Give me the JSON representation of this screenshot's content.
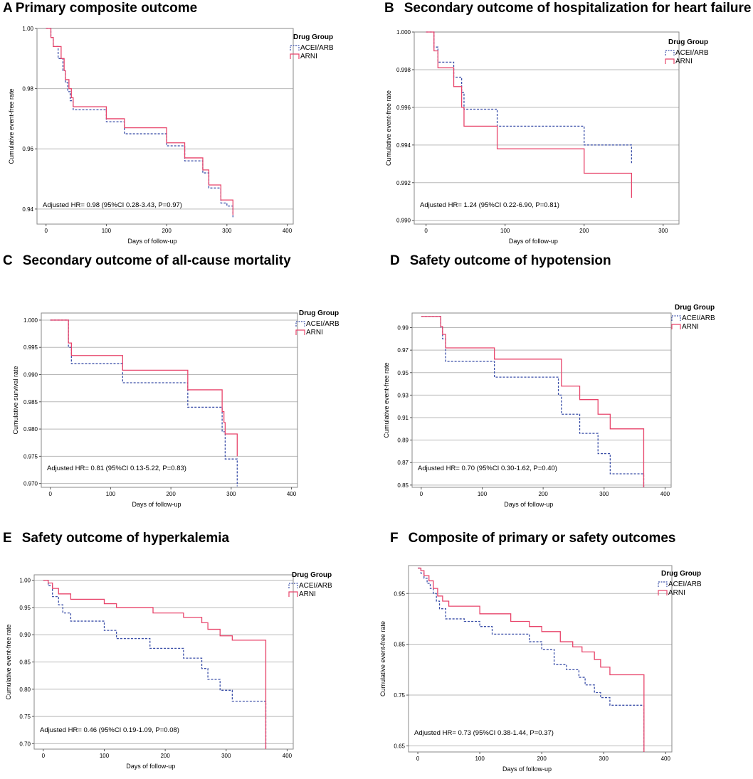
{
  "legend": {
    "title": "Drug Group",
    "entries": [
      "ACEI/ARB",
      "ARNI"
    ],
    "colors": {
      "ACEI/ARB": "#3b4fa8",
      "ARNI": "#e8456b"
    }
  },
  "chart_data": [
    {
      "type": "line",
      "letter": "A",
      "title": "Primary composite outcome",
      "xlabel": "Days of follow-up",
      "ylabel": "Cumulative event-free rate",
      "xlim": [
        -15,
        410
      ],
      "ylim": [
        0.935,
        1.0
      ],
      "xticks": [
        "0",
        "100",
        "200",
        "300",
        "400"
      ],
      "xtickvals": [
        0,
        100,
        200,
        300,
        400
      ],
      "yticks": [
        "0.94",
        "0.96",
        "0.98",
        "1.00"
      ],
      "ytickvals": [
        0.94,
        0.96,
        0.98,
        1.0
      ],
      "annotation": "Adjusted HR= 0.98 (95%CI 0.28-3.43, P=0.97)",
      "series": [
        {
          "name": "ACEI/ARB",
          "x": [
            0,
            8,
            12,
            20,
            28,
            32,
            36,
            40,
            45,
            100,
            130,
            200,
            230,
            250,
            260,
            270,
            290,
            300,
            310
          ],
          "values": [
            1.0,
            0.997,
            0.994,
            0.99,
            0.986,
            0.982,
            0.979,
            0.976,
            0.973,
            0.969,
            0.965,
            0.961,
            0.956,
            0.956,
            0.952,
            0.947,
            0.942,
            0.941,
            0.937
          ]
        },
        {
          "name": "ARNI",
          "x": [
            0,
            8,
            12,
            25,
            30,
            32,
            38,
            42,
            45,
            100,
            130,
            200,
            230,
            250,
            260,
            270,
            290,
            300,
            310
          ],
          "values": [
            1.0,
            0.997,
            0.994,
            0.99,
            0.986,
            0.983,
            0.98,
            0.977,
            0.974,
            0.97,
            0.967,
            0.962,
            0.957,
            0.957,
            0.953,
            0.948,
            0.943,
            0.943,
            0.938
          ]
        }
      ]
    },
    {
      "type": "line",
      "letter": "B",
      "title": "Secondary outcome of hospitalization for heart failure",
      "xlabel": "Days of follow-up",
      "ylabel": "Cumulative event-free rate",
      "xlim": [
        -15,
        320
      ],
      "ylim": [
        0.9898,
        1.0
      ],
      "xticks": [
        "0",
        "100",
        "200",
        "300"
      ],
      "xtickvals": [
        0,
        100,
        200,
        300
      ],
      "yticks": [
        "0.990",
        "0.992",
        "0.994",
        "0.996",
        "0.998",
        "1.000"
      ],
      "ytickvals": [
        0.99,
        0.992,
        0.994,
        0.996,
        0.998,
        1.0
      ],
      "annotation": "Adjusted HR= 1.24 (95%CI 0.22-6.90, P=0.81)",
      "series": [
        {
          "name": "ACEI/ARB",
          "x": [
            0,
            10,
            15,
            35,
            45,
            48,
            90,
            200,
            260
          ],
          "values": [
            1.0,
            0.9992,
            0.9984,
            0.9976,
            0.9968,
            0.9959,
            0.995,
            0.994,
            0.993
          ]
        },
        {
          "name": "ARNI",
          "x": [
            0,
            10,
            15,
            35,
            45,
            48,
            90,
            200,
            260
          ],
          "values": [
            1.0,
            0.999,
            0.9981,
            0.9971,
            0.996,
            0.995,
            0.9938,
            0.9925,
            0.9912
          ]
        }
      ]
    },
    {
      "type": "line",
      "letter": "C",
      "title": "Secondary outcome of all-cause mortality",
      "xlabel": "Days of follow-up",
      "ylabel": "Cumulative survival rate",
      "xlim": [
        -15,
        410
      ],
      "ylim": [
        0.9693,
        1.0013
      ],
      "xticks": [
        "0",
        "100",
        "200",
        "300",
        "400"
      ],
      "xtickvals": [
        0,
        100,
        200,
        300,
        400
      ],
      "yticks": [
        "0.970",
        "0.975",
        "0.980",
        "0.985",
        "0.990",
        "0.995",
        "1.000"
      ],
      "ytickvals": [
        0.97,
        0.975,
        0.98,
        0.985,
        0.99,
        0.995,
        1.0
      ],
      "annotation": "Adjusted HR=  0.81  (95%CI 0.13-5.22, P=0.83)",
      "series": [
        {
          "name": "ACEI/ARB",
          "x": [
            0,
            30,
            35,
            120,
            228,
            285,
            290,
            310
          ],
          "values": [
            1.0,
            0.995,
            0.992,
            0.9885,
            0.984,
            0.9795,
            0.9745,
            0.9695
          ]
        },
        {
          "name": "ARNI",
          "x": [
            0,
            30,
            35,
            120,
            228,
            285,
            288,
            290,
            300,
            310
          ],
          "values": [
            1.0,
            0.9958,
            0.9935,
            0.9908,
            0.9872,
            0.9832,
            0.9812,
            0.9791,
            0.9791,
            0.975
          ]
        }
      ]
    },
    {
      "type": "line",
      "letter": "D",
      "title": "Safety outcome of hypotension",
      "xlabel": "Days of follow-up",
      "ylabel": "Cumulative event-free rate",
      "xlim": [
        -15,
        410
      ],
      "ylim": [
        0.848,
        1.003
      ],
      "xticks": [
        "0",
        "100",
        "200",
        "300",
        "400"
      ],
      "xtickvals": [
        0,
        100,
        200,
        300,
        400
      ],
      "yticks": [
        "0.85",
        "0.87",
        "0.89",
        "0.91",
        "0.93",
        "0.95",
        "0.97",
        "0.99"
      ],
      "ytickvals": [
        0.85,
        0.87,
        0.89,
        0.91,
        0.93,
        0.95,
        0.97,
        0.99
      ],
      "annotation": "Adjusted HR= 0.70 (95%CI 0.30-1.62, P=0.40)",
      "series": [
        {
          "name": "ACEI/ARB",
          "x": [
            0,
            32,
            35,
            40,
            120,
            225,
            230,
            260,
            290,
            310,
            365
          ],
          "values": [
            1.0,
            0.99,
            0.98,
            0.96,
            0.946,
            0.93,
            0.913,
            0.896,
            0.878,
            0.86,
            0.848
          ]
        },
        {
          "name": "ARNI",
          "x": [
            0,
            32,
            35,
            40,
            120,
            230,
            260,
            290,
            310,
            365
          ],
          "values": [
            1.0,
            0.991,
            0.984,
            0.972,
            0.962,
            0.938,
            0.926,
            0.913,
            0.9,
            0.848
          ]
        }
      ]
    },
    {
      "type": "line",
      "letter": "E",
      "title": "Safety outcome of hyperkalemia",
      "xlabel": "Days of follow-up",
      "ylabel": "Cumulative event-free rate",
      "xlim": [
        -15,
        410
      ],
      "ylim": [
        0.69,
        1.01
      ],
      "xticks": [
        "0",
        "100",
        "200",
        "300",
        "400"
      ],
      "xtickvals": [
        0,
        100,
        200,
        300,
        400
      ],
      "yticks": [
        "0.70",
        "0.75",
        "0.80",
        "0.85",
        "0.90",
        "0.95",
        "1.00"
      ],
      "ytickvals": [
        0.7,
        0.75,
        0.8,
        0.85,
        0.9,
        0.95,
        1.0
      ],
      "annotation": "Adjusted HR=  0.46  (95%CI 0.19-1.09, P=0.08)",
      "series": [
        {
          "name": "ACEI/ARB",
          "x": [
            0,
            8,
            15,
            25,
            32,
            45,
            100,
            120,
            175,
            230,
            260,
            270,
            290,
            310,
            365
          ],
          "values": [
            1.0,
            0.99,
            0.97,
            0.955,
            0.94,
            0.925,
            0.908,
            0.893,
            0.875,
            0.857,
            0.838,
            0.818,
            0.798,
            0.778,
            0.69
          ]
        },
        {
          "name": "ARNI",
          "x": [
            0,
            8,
            15,
            25,
            45,
            100,
            120,
            180,
            230,
            260,
            270,
            290,
            310,
            365
          ],
          "values": [
            1.0,
            0.995,
            0.985,
            0.975,
            0.965,
            0.957,
            0.95,
            0.94,
            0.932,
            0.922,
            0.91,
            0.898,
            0.89,
            0.69
          ]
        }
      ]
    },
    {
      "type": "line",
      "letter": "F",
      "title": "Composite of primary or safety outcomes",
      "xlabel": "Days of follow-up",
      "ylabel": "Cumulative event-free rate",
      "xlim": [
        -15,
        410
      ],
      "ylim": [
        0.638,
        1.005
      ],
      "xticks": [
        "0",
        "100",
        "200",
        "300",
        "400"
      ],
      "xtickvals": [
        0,
        100,
        200,
        300,
        400
      ],
      "yticks": [
        "0.65",
        "0.75",
        "0.85",
        "0.95"
      ],
      "ytickvals": [
        0.65,
        0.75,
        0.85,
        0.95
      ],
      "annotation": "Adjusted HR=  0.73  (95%CI 0.38-1.44, P=0.37)",
      "series": [
        {
          "name": "ACEI/ARB",
          "x": [
            0,
            5,
            10,
            15,
            20,
            25,
            30,
            35,
            45,
            75,
            100,
            120,
            180,
            200,
            220,
            240,
            260,
            270,
            285,
            295,
            310,
            365
          ],
          "values": [
            1.0,
            0.99,
            0.98,
            0.97,
            0.96,
            0.95,
            0.935,
            0.92,
            0.9,
            0.895,
            0.885,
            0.87,
            0.855,
            0.84,
            0.81,
            0.8,
            0.785,
            0.77,
            0.755,
            0.745,
            0.73,
            0.638
          ]
        },
        {
          "name": "ARNI",
          "x": [
            0,
            5,
            10,
            18,
            25,
            32,
            40,
            50,
            100,
            150,
            180,
            200,
            230,
            250,
            265,
            285,
            295,
            310,
            365
          ],
          "values": [
            1.0,
            0.995,
            0.985,
            0.975,
            0.96,
            0.945,
            0.935,
            0.925,
            0.91,
            0.895,
            0.885,
            0.875,
            0.855,
            0.845,
            0.835,
            0.82,
            0.805,
            0.79,
            0.638
          ]
        }
      ]
    }
  ]
}
